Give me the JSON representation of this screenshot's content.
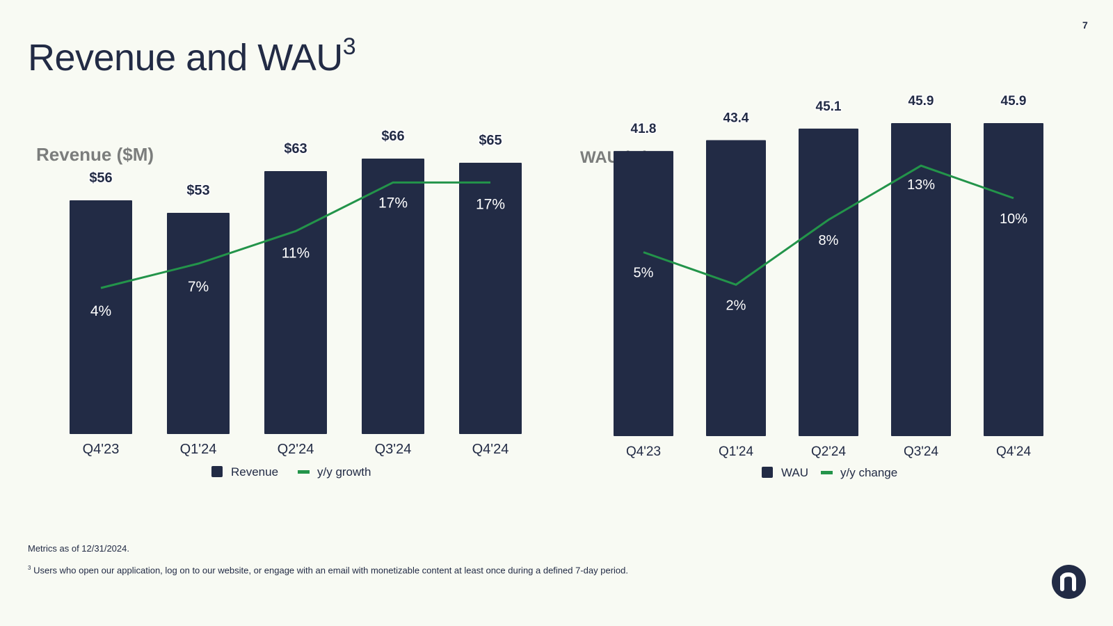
{
  "page_number": "7",
  "title": {
    "text": "Revenue and WAU",
    "superscript": "3"
  },
  "colors": {
    "bar": "#222b45",
    "line": "#23944a",
    "background": "#f8faf3",
    "subtitle": "#7b7d7c"
  },
  "chart_data": [
    {
      "type": "bar",
      "title": "Revenue ($M)",
      "categories": [
        "Q4'23",
        "Q1'24",
        "Q2'24",
        "Q3'24",
        "Q4'24"
      ],
      "series": [
        {
          "name": "Revenue",
          "kind": "bar",
          "values": [
            56,
            53,
            63,
            66,
            65
          ],
          "labels": [
            "$56",
            "$53",
            "$63",
            "$66",
            "$65"
          ]
        },
        {
          "name": "y/y growth",
          "kind": "line",
          "values": [
            4,
            7,
            11,
            17,
            17
          ],
          "labels": [
            "4%",
            "7%",
            "11%",
            "17%",
            "17%"
          ]
        }
      ],
      "bar_range": [
        0,
        70
      ],
      "line_range": [
        -14,
        22
      ],
      "legend": [
        "Revenue",
        "y/y growth"
      ],
      "legend_position": "bottom"
    },
    {
      "type": "bar",
      "title": "WAU (M)",
      "categories": [
        "Q4'23",
        "Q1'24",
        "Q2'24",
        "Q3'24",
        "Q4'24"
      ],
      "series": [
        {
          "name": "WAU",
          "kind": "bar",
          "values": [
            41.8,
            43.4,
            45.1,
            45.9,
            45.9
          ],
          "labels": [
            "41.8",
            "43.4",
            "45.1",
            "45.9",
            "45.9"
          ]
        },
        {
          "name": "y/y change",
          "kind": "line",
          "values": [
            5,
            2,
            8,
            13,
            10
          ],
          "labels": [
            "5%",
            "2%",
            "8%",
            "13%",
            "10%"
          ]
        }
      ],
      "bar_range": [
        0,
        46
      ],
      "line_range": [
        -12,
        17
      ],
      "legend": [
        "WAU",
        "y/y change"
      ],
      "legend_position": "bottom"
    }
  ],
  "footnotes": {
    "metrics": "Metrics as of 12/31/2024.",
    "marker": "3",
    "definition": "Users who open our application, log on to our website, or engage with an email with monetizable content at least once during a defined 7-day period."
  },
  "logo": {
    "name": "company-logo",
    "glyph": "n"
  }
}
